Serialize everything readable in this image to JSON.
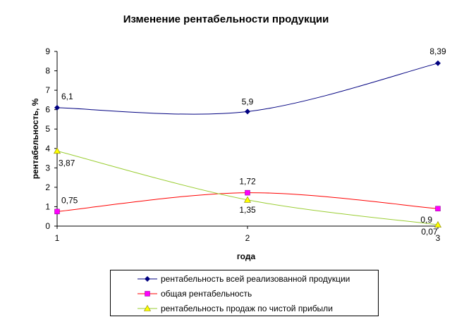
{
  "chart_data": {
    "type": "line",
    "title": "Изменение рентабельности продукции",
    "xlabel": "года",
    "ylabel": "рентабельность, %",
    "categories": [
      "1",
      "2",
      "3"
    ],
    "ylim": [
      0,
      9
    ],
    "yticks": [
      "0",
      "1",
      "2",
      "3",
      "4",
      "5",
      "6",
      "7",
      "8",
      "9"
    ],
    "grid": false,
    "legend_position": "bottom",
    "smooth": true,
    "series": [
      {
        "name": "рентабельность всей реализованной продукции",
        "values": [
          6.1,
          5.9,
          8.39
        ],
        "labels": [
          "6,1",
          "5,9",
          "8,39"
        ],
        "color": "#000080",
        "marker": "diamond"
      },
      {
        "name": "общая рентабельность",
        "values": [
          0.75,
          1.72,
          0.9
        ],
        "labels": [
          "0,75",
          "1,72",
          "0,9"
        ],
        "color": "#ff00ff",
        "marker": "square"
      },
      {
        "name": "рентабельность продаж по чистой прибыли",
        "values": [
          3.87,
          1.35,
          0.07
        ],
        "labels": [
          "3,87",
          "1,35",
          "0,07"
        ],
        "color": "#ffff00",
        "marker": "triangle"
      }
    ]
  }
}
